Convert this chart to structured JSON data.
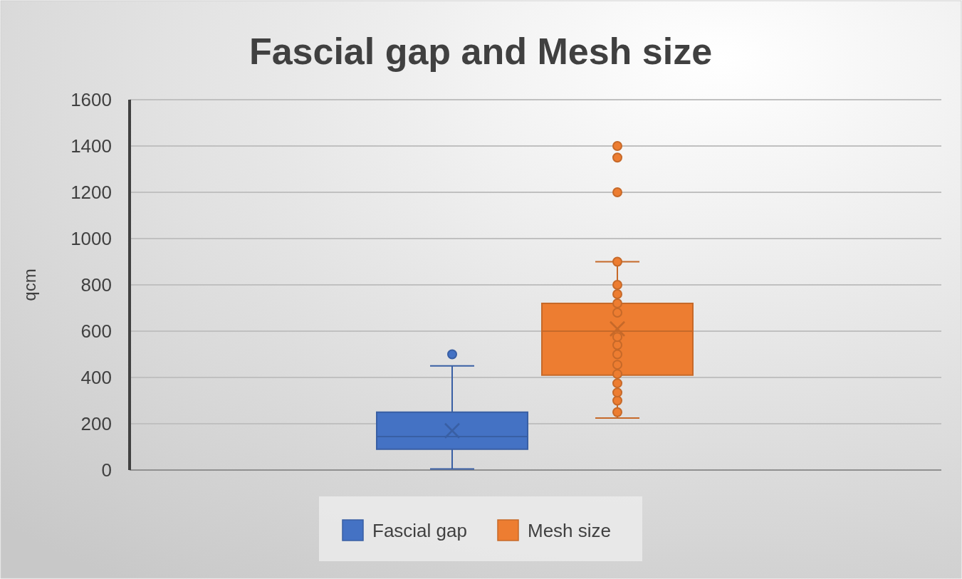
{
  "chart_data": {
    "type": "box",
    "title": "Fascial gap and Mesh size",
    "ylabel": "qcm",
    "categories": [
      null
    ],
    "ylim": [
      0,
      1600
    ],
    "yticks": [
      0,
      200,
      400,
      600,
      800,
      1000,
      1200,
      1400,
      1600
    ],
    "grid": "y",
    "legend": "bottom",
    "marker": "circle",
    "series": [
      {
        "name": "Fascial gap",
        "color": "#4472c4",
        "boxes": [
          {
            "low": 5,
            "q1": 90,
            "median": 145,
            "q3": 250,
            "high": 450,
            "mean": 170,
            "outliers": [
              500
            ]
          }
        ]
      },
      {
        "name": "Mesh size",
        "color": "#ed7d31",
        "boxes": [
          {
            "low": 225,
            "q1": 410,
            "median": 600,
            "q3": 720,
            "high": 900,
            "mean": 610,
            "outliers": [
              1200,
              1350,
              1400
            ]
          }
        ]
      },
      {
        "type": "scatter",
        "color": "#ed7d31",
        "x": [
          null,
          null,
          null,
          null,
          null,
          null,
          null,
          null,
          null,
          null,
          null,
          null,
          null,
          null
        ],
        "values": [
          250,
          300,
          335,
          375,
          415,
          455,
          500,
          540,
          575,
          680,
          720,
          760,
          800,
          900
        ]
      }
    ]
  }
}
